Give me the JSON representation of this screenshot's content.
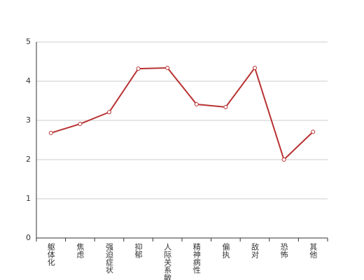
{
  "chart_data": {
    "type": "line",
    "categories": [
      "躯体化",
      "焦虑",
      "强迫症状",
      "抑郁",
      "人际关系敏感",
      "精神病性",
      "偏执",
      "敌对",
      "恐怖",
      "其他"
    ],
    "series": [
      {
        "color": "#b83232",
        "values": [
          2.68,
          2.91,
          3.21,
          4.32,
          4.34,
          3.41,
          3.34,
          4.34,
          2.0,
          2.71
        ]
      }
    ],
    "ylim": [
      0,
      5
    ],
    "yticks": [
      0,
      1,
      2,
      3,
      4,
      5
    ],
    "grid": true
  }
}
